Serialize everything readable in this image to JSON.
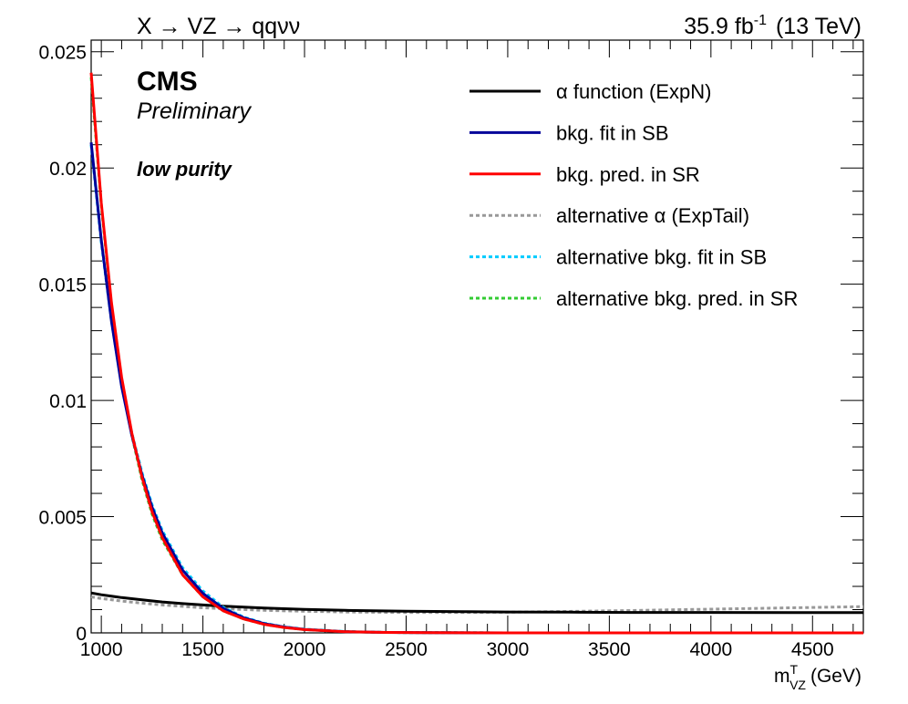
{
  "chart_data": {
    "type": "line",
    "title_left": "X → VZ → qqνν",
    "title_right": {
      "lumi_value": "35.9 fb",
      "lumi_exp": "-1",
      "energy": "(13 TeV)"
    },
    "cms_label": "CMS",
    "preliminary_label": "Preliminary",
    "category_label": "low purity",
    "xlabel": {
      "base": "m",
      "sup": "T",
      "sub": "VZ",
      "unit": "(GeV)"
    },
    "ylabel": "",
    "xlim": [
      950,
      4750
    ],
    "ylim": [
      0,
      0.0255
    ],
    "xticks": [
      1000,
      1500,
      2000,
      2500,
      3000,
      3500,
      4000,
      4500
    ],
    "xtick_labels": [
      "1000",
      "1500",
      "2000",
      "2500",
      "3000",
      "3500",
      "4000",
      "4500"
    ],
    "yticks": [
      0,
      0.005,
      0.01,
      0.015,
      0.02,
      0.025
    ],
    "ytick_labels": [
      "0",
      "0.005",
      "0.01",
      "0.015",
      "0.02",
      "0.025"
    ],
    "grid": false,
    "legend_position": "top-right",
    "series": [
      {
        "name": "α function (ExpN)",
        "color": "#000000",
        "dashed": false,
        "x": [
          950,
          1000,
          1100,
          1200,
          1300,
          1400,
          1500,
          1600,
          1800,
          2000,
          2200,
          2500,
          2800,
          3000,
          3300,
          3600,
          4000,
          4400,
          4750
        ],
        "y": [
          0.00172,
          0.00164,
          0.00152,
          0.00142,
          0.00133,
          0.00126,
          0.0012,
          0.00115,
          0.00107,
          0.00101,
          0.00097,
          0.00093,
          0.00091,
          0.0009,
          0.00089,
          0.00088,
          0.00088,
          0.00087,
          0.00087
        ]
      },
      {
        "name": "bkg. fit in SB",
        "color": "#000099",
        "dashed": false,
        "x": [
          950,
          1000,
          1050,
          1100,
          1150,
          1200,
          1250,
          1300,
          1400,
          1500,
          1600,
          1700,
          1800,
          1900,
          2000,
          2200,
          2400,
          2600,
          3000,
          3500,
          4000,
          4750
        ],
        "y": [
          0.0211,
          0.0169,
          0.0134,
          0.0106,
          0.0085,
          0.0068,
          0.0054,
          0.0043,
          0.0027,
          0.0017,
          0.00105,
          0.00065,
          0.0004,
          0.00025,
          0.00015,
          5e-05,
          2e-05,
          1e-05,
          0.0,
          0.0,
          0.0,
          0.0
        ]
      },
      {
        "name": "bkg. pred. in SR",
        "color": "#ff0000",
        "dashed": false,
        "x": [
          950,
          1000,
          1050,
          1100,
          1150,
          1200,
          1250,
          1300,
          1400,
          1500,
          1600,
          1700,
          1800,
          1900,
          2000,
          2200,
          2400,
          2600,
          3000,
          3500,
          4000,
          4750
        ],
        "y": [
          0.0241,
          0.0185,
          0.0142,
          0.011,
          0.0086,
          0.0067,
          0.0052,
          0.0041,
          0.0025,
          0.00155,
          0.00095,
          0.0006,
          0.00037,
          0.00023,
          0.00014,
          5e-05,
          2e-05,
          1e-05,
          0.0,
          0.0,
          0.0,
          0.0
        ]
      },
      {
        "name": "alternative α (ExpTail)",
        "color": "#999999",
        "dashed": true,
        "x": [
          950,
          1000,
          1100,
          1200,
          1300,
          1400,
          1500,
          1600,
          1800,
          2000,
          2200,
          2500,
          2800,
          3000,
          3300,
          3600,
          4000,
          4400,
          4750
        ],
        "y": [
          0.00155,
          0.00148,
          0.00137,
          0.00128,
          0.0012,
          0.00114,
          0.00108,
          0.00104,
          0.00097,
          0.00093,
          0.0009,
          0.00088,
          0.00088,
          0.00089,
          0.00092,
          0.00096,
          0.00102,
          0.00108,
          0.00113
        ]
      },
      {
        "name": "alternative bkg. fit in SB",
        "color": "#00ccff",
        "dashed": true,
        "x": [
          950,
          1000,
          1050,
          1100,
          1150,
          1200,
          1250,
          1300,
          1400,
          1500,
          1600,
          1700,
          1800,
          1900,
          2000,
          2200,
          2400,
          2600,
          3000,
          3500,
          4000,
          4750
        ],
        "y": [
          0.021,
          0.0168,
          0.0134,
          0.0107,
          0.0086,
          0.0069,
          0.0055,
          0.0044,
          0.0028,
          0.0018,
          0.0011,
          0.00068,
          0.00042,
          0.00026,
          0.00016,
          6e-05,
          2e-05,
          1e-05,
          0.0,
          0.0,
          0.0,
          0.0
        ]
      },
      {
        "name": "alternative bkg. pred. in SR",
        "color": "#33cc33",
        "dashed": true,
        "x": [
          950,
          1000,
          1050,
          1100,
          1150,
          1200,
          1250,
          1300,
          1400,
          1500,
          1600,
          1700,
          1800,
          1900,
          2000,
          2200,
          2400,
          2600,
          3000,
          3500,
          4000,
          4750
        ],
        "y": [
          0.0239,
          0.0184,
          0.0141,
          0.0109,
          0.0085,
          0.0066,
          0.0051,
          0.004,
          0.0025,
          0.00155,
          0.00095,
          0.0006,
          0.00037,
          0.00023,
          0.00014,
          5e-05,
          2e-05,
          1e-05,
          0.0,
          0.0,
          0.0,
          0.0
        ]
      }
    ]
  }
}
